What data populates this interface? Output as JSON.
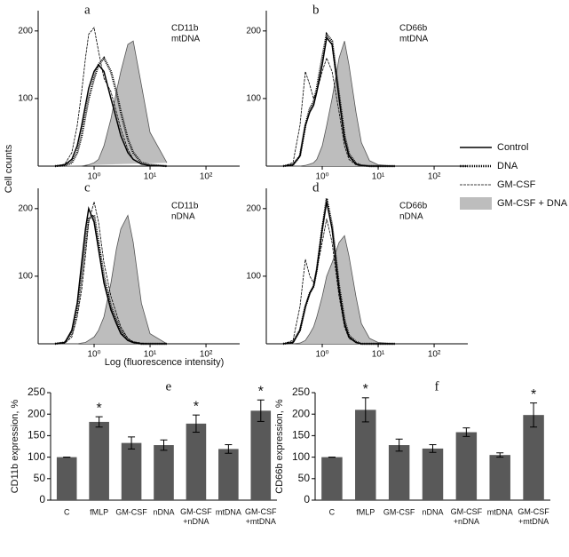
{
  "figure": {
    "ylabel": "Cell counts",
    "xlabel": "Log (fluorescence intensity)"
  },
  "chart_data": [
    {
      "type": "line",
      "panel": "a",
      "annotation": [
        "CD11b",
        "mtDNA"
      ],
      "xlog": true,
      "xlim": [
        0.1,
        400
      ],
      "ylim": [
        0,
        230
      ],
      "xticks": [
        {
          "value": 1,
          "label": "10⁰"
        },
        {
          "value": 10,
          "label": "10¹"
        },
        {
          "value": 100,
          "label": "10²"
        }
      ],
      "yticks": [
        100,
        200
      ],
      "x": [
        0.2,
        0.3,
        0.4,
        0.5,
        0.6,
        0.7,
        0.8,
        1,
        1.2,
        1.5,
        2,
        2.5,
        3,
        4,
        5,
        7,
        10,
        20
      ],
      "series": [
        {
          "name": "Control",
          "color": "#000",
          "dash": "none",
          "width": 1.5,
          "fill": "none",
          "values": [
            0,
            2,
            10,
            30,
            60,
            90,
            115,
            140,
            150,
            140,
            100,
            70,
            45,
            20,
            10,
            3,
            1,
            0
          ]
        },
        {
          "name": "DNA",
          "color": "#000",
          "dash": "1,1",
          "width": 2.4,
          "fill": "none",
          "values": [
            0,
            1,
            5,
            20,
            45,
            75,
            100,
            130,
            150,
            160,
            140,
            110,
            80,
            40,
            20,
            5,
            2,
            0
          ]
        },
        {
          "name": "GM-CSF",
          "color": "#000",
          "dash": "3,1",
          "width": 0.8,
          "fill": "none",
          "values": [
            0,
            3,
            20,
            60,
            110,
            160,
            195,
            205,
            170,
            130,
            110,
            80,
            55,
            25,
            10,
            3,
            1,
            0
          ]
        },
        {
          "name": "GM-CSF + DNA",
          "color": "#555",
          "dash": "none",
          "width": 0.8,
          "fill": "#bdbdbd",
          "values": [
            0,
            0,
            0,
            0,
            0,
            1,
            2,
            5,
            10,
            30,
            70,
            110,
            140,
            180,
            185,
            120,
            50,
            5
          ]
        }
      ]
    },
    {
      "type": "line",
      "panel": "b",
      "annotation": [
        "CD66b",
        "mtDNA"
      ],
      "xlog": true,
      "xlim": [
        0.1,
        400
      ],
      "ylim": [
        0,
        230
      ],
      "xticks": [
        {
          "value": 1,
          "label": "10⁰"
        },
        {
          "value": 10,
          "label": "10¹"
        },
        {
          "value": 100,
          "label": "10²"
        }
      ],
      "yticks": [
        100,
        200
      ],
      "x": [
        0.2,
        0.3,
        0.4,
        0.5,
        0.6,
        0.7,
        0.8,
        1,
        1.2,
        1.5,
        2,
        2.5,
        3,
        4,
        5,
        7,
        10,
        20
      ],
      "series": [
        {
          "color": "#000",
          "dash": "none",
          "width": 1.5,
          "fill": "none",
          "values": [
            0,
            2,
            15,
            60,
            80,
            90,
            110,
            150,
            190,
            180,
            100,
            40,
            15,
            3,
            1,
            0,
            0,
            0
          ]
        },
        {
          "color": "#000",
          "dash": "1,1",
          "width": 2.4,
          "fill": "none",
          "values": [
            0,
            2,
            15,
            60,
            85,
            95,
            115,
            160,
            195,
            185,
            105,
            45,
            18,
            4,
            1,
            0,
            0,
            0
          ]
        },
        {
          "color": "#000",
          "dash": "3,1",
          "width": 0.8,
          "fill": "none",
          "values": [
            0,
            5,
            60,
            140,
            120,
            100,
            110,
            140,
            160,
            140,
            80,
            30,
            10,
            2,
            0,
            0,
            0,
            0
          ]
        },
        {
          "color": "#555",
          "dash": "none",
          "width": 0.8,
          "fill": "#bdbdbd",
          "values": [
            0,
            0,
            0,
            1,
            3,
            5,
            10,
            30,
            60,
            100,
            160,
            185,
            150,
            80,
            35,
            8,
            2,
            0
          ]
        }
      ]
    },
    {
      "type": "line",
      "panel": "c",
      "annotation": [
        "CD11b",
        "nDNA"
      ],
      "xlog": true,
      "xlim": [
        0.1,
        400
      ],
      "ylim": [
        0,
        230
      ],
      "xticks": [
        {
          "value": 1,
          "label": "10⁰"
        },
        {
          "value": 10,
          "label": "10¹"
        },
        {
          "value": 100,
          "label": "10²"
        }
      ],
      "yticks": [
        100,
        200
      ],
      "x": [
        0.2,
        0.3,
        0.4,
        0.5,
        0.6,
        0.7,
        0.8,
        1,
        1.2,
        1.5,
        2,
        2.5,
        3,
        4,
        5,
        7,
        10,
        20
      ],
      "series": [
        {
          "color": "#000",
          "dash": "none",
          "width": 1.5,
          "fill": "none",
          "values": [
            0,
            2,
            20,
            60,
            120,
            170,
            200,
            180,
            140,
            90,
            50,
            30,
            15,
            5,
            2,
            0,
            0,
            0
          ]
        },
        {
          "color": "#000",
          "dash": "1,1",
          "width": 2.4,
          "fill": "none",
          "values": [
            0,
            2,
            15,
            50,
            100,
            150,
            185,
            190,
            150,
            100,
            55,
            35,
            20,
            6,
            2,
            0,
            0,
            0
          ]
        },
        {
          "color": "#000",
          "dash": "3,1",
          "width": 0.8,
          "fill": "none",
          "values": [
            0,
            1,
            10,
            40,
            80,
            130,
            180,
            210,
            180,
            120,
            70,
            45,
            25,
            8,
            3,
            1,
            0,
            0
          ]
        },
        {
          "color": "#555",
          "dash": "none",
          "width": 0.8,
          "fill": "#bdbdbd",
          "values": [
            0,
            0,
            0,
            0,
            1,
            2,
            5,
            10,
            20,
            40,
            90,
            140,
            170,
            190,
            150,
            60,
            15,
            0
          ]
        }
      ]
    },
    {
      "type": "line",
      "panel": "d",
      "annotation": [
        "CD66b",
        "nDNA"
      ],
      "xlog": true,
      "xlim": [
        0.1,
        400
      ],
      "ylim": [
        0,
        230
      ],
      "xticks": [
        {
          "value": 1,
          "label": "10⁰"
        },
        {
          "value": 10,
          "label": "10¹"
        },
        {
          "value": 100,
          "label": "10²"
        }
      ],
      "yticks": [
        100,
        200
      ],
      "x": [
        0.2,
        0.3,
        0.4,
        0.5,
        0.6,
        0.7,
        0.8,
        1,
        1.2,
        1.5,
        2,
        2.5,
        3,
        4,
        5,
        7,
        10,
        20
      ],
      "series": [
        {
          "color": "#000",
          "dash": "none",
          "width": 1.5,
          "fill": "none",
          "values": [
            0,
            2,
            20,
            55,
            75,
            85,
            110,
            170,
            210,
            170,
            80,
            30,
            10,
            2,
            0,
            0,
            0,
            0
          ]
        },
        {
          "color": "#000",
          "dash": "1,1",
          "width": 2.4,
          "fill": "none",
          "values": [
            0,
            2,
            20,
            55,
            75,
            85,
            110,
            170,
            215,
            175,
            85,
            35,
            12,
            3,
            0,
            0,
            0,
            0
          ]
        },
        {
          "color": "#000",
          "dash": "3,1",
          "width": 0.8,
          "fill": "none",
          "values": [
            0,
            5,
            55,
            125,
            100,
            90,
            110,
            150,
            185,
            150,
            70,
            25,
            8,
            2,
            0,
            0,
            0,
            0
          ]
        },
        {
          "color": "#555",
          "dash": "none",
          "width": 0.8,
          "fill": "#bdbdbd",
          "values": [
            0,
            0,
            1,
            5,
            15,
            25,
            40,
            70,
            100,
            120,
            150,
            160,
            130,
            70,
            30,
            8,
            2,
            0
          ]
        }
      ]
    },
    {
      "type": "bar",
      "panel": "e",
      "ylabel": "CD11b expression, %",
      "color": "#595959",
      "categories": [
        "C",
        "fMLP",
        "GM-CSF",
        "nDNA",
        "GM-CSF +nDNA",
        "mtDNA",
        "GM-CSF +mtDNA"
      ],
      "values": [
        100,
        182,
        133,
        128,
        178,
        119,
        208
      ],
      "errors": [
        0,
        12,
        14,
        12,
        20,
        10,
        25
      ],
      "significance": [
        null,
        "*",
        null,
        null,
        "*",
        null,
        "*"
      ],
      "ylim": [
        0,
        250
      ],
      "yticks": [
        0,
        50,
        100,
        150,
        200,
        250
      ]
    },
    {
      "type": "bar",
      "panel": "f",
      "ylabel": "CD66b expression, %",
      "color": "#595959",
      "categories": [
        "C",
        "fMLP",
        "GM-CSF",
        "nDNA",
        "GM-CSF +nDNA",
        "mtDNA",
        "GM-CSF +mtDNA"
      ],
      "values": [
        100,
        210,
        128,
        120,
        158,
        105,
        198
      ],
      "errors": [
        0,
        28,
        14,
        9,
        10,
        5,
        28
      ],
      "significance": [
        null,
        "*",
        null,
        null,
        null,
        null,
        "*"
      ],
      "ylim": [
        0,
        250
      ],
      "yticks": [
        0,
        50,
        100,
        150,
        200,
        250
      ]
    }
  ]
}
